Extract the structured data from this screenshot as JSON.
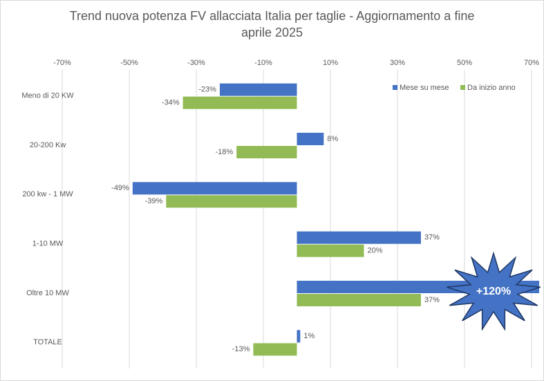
{
  "chart_data": {
    "type": "hbar",
    "title": "Trend nuova potenza FV allacciata Italia per taglie - Aggiornamento a fine aprile 2025",
    "categories": [
      "Meno di 20 KW",
      "20-200 Kw",
      "200 kw - 1 MW",
      "1-10 MW",
      "Oltre 10 MW",
      "TOTALE"
    ],
    "series": [
      {
        "name": "Mese su mese",
        "color": "#4472c4",
        "values": [
          -23,
          8,
          -49,
          37,
          120,
          1
        ],
        "value_labels": [
          "-23%",
          "8%",
          "-49%",
          "37%",
          "+120%",
          "1%"
        ]
      },
      {
        "name": "Da inizio anno",
        "color": "#92bb55",
        "values": [
          -34,
          -18,
          -39,
          20,
          37,
          -13
        ],
        "value_labels": [
          "-34%",
          "-18%",
          "-39%",
          "20%",
          "37%",
          "-13%"
        ]
      }
    ],
    "xlim": [
      -70,
      70
    ],
    "xticks": [
      {
        "value": -70,
        "label": "-70%"
      },
      {
        "value": -50,
        "label": "-50%"
      },
      {
        "value": -30,
        "label": "-30%"
      },
      {
        "value": -10,
        "label": "-10%"
      },
      {
        "value": 10,
        "label": "10%"
      },
      {
        "value": 30,
        "label": "30%"
      },
      {
        "value": 50,
        "label": "50%"
      },
      {
        "value": 70,
        "label": "70%"
      }
    ],
    "grid": true,
    "legend": "top-right"
  }
}
